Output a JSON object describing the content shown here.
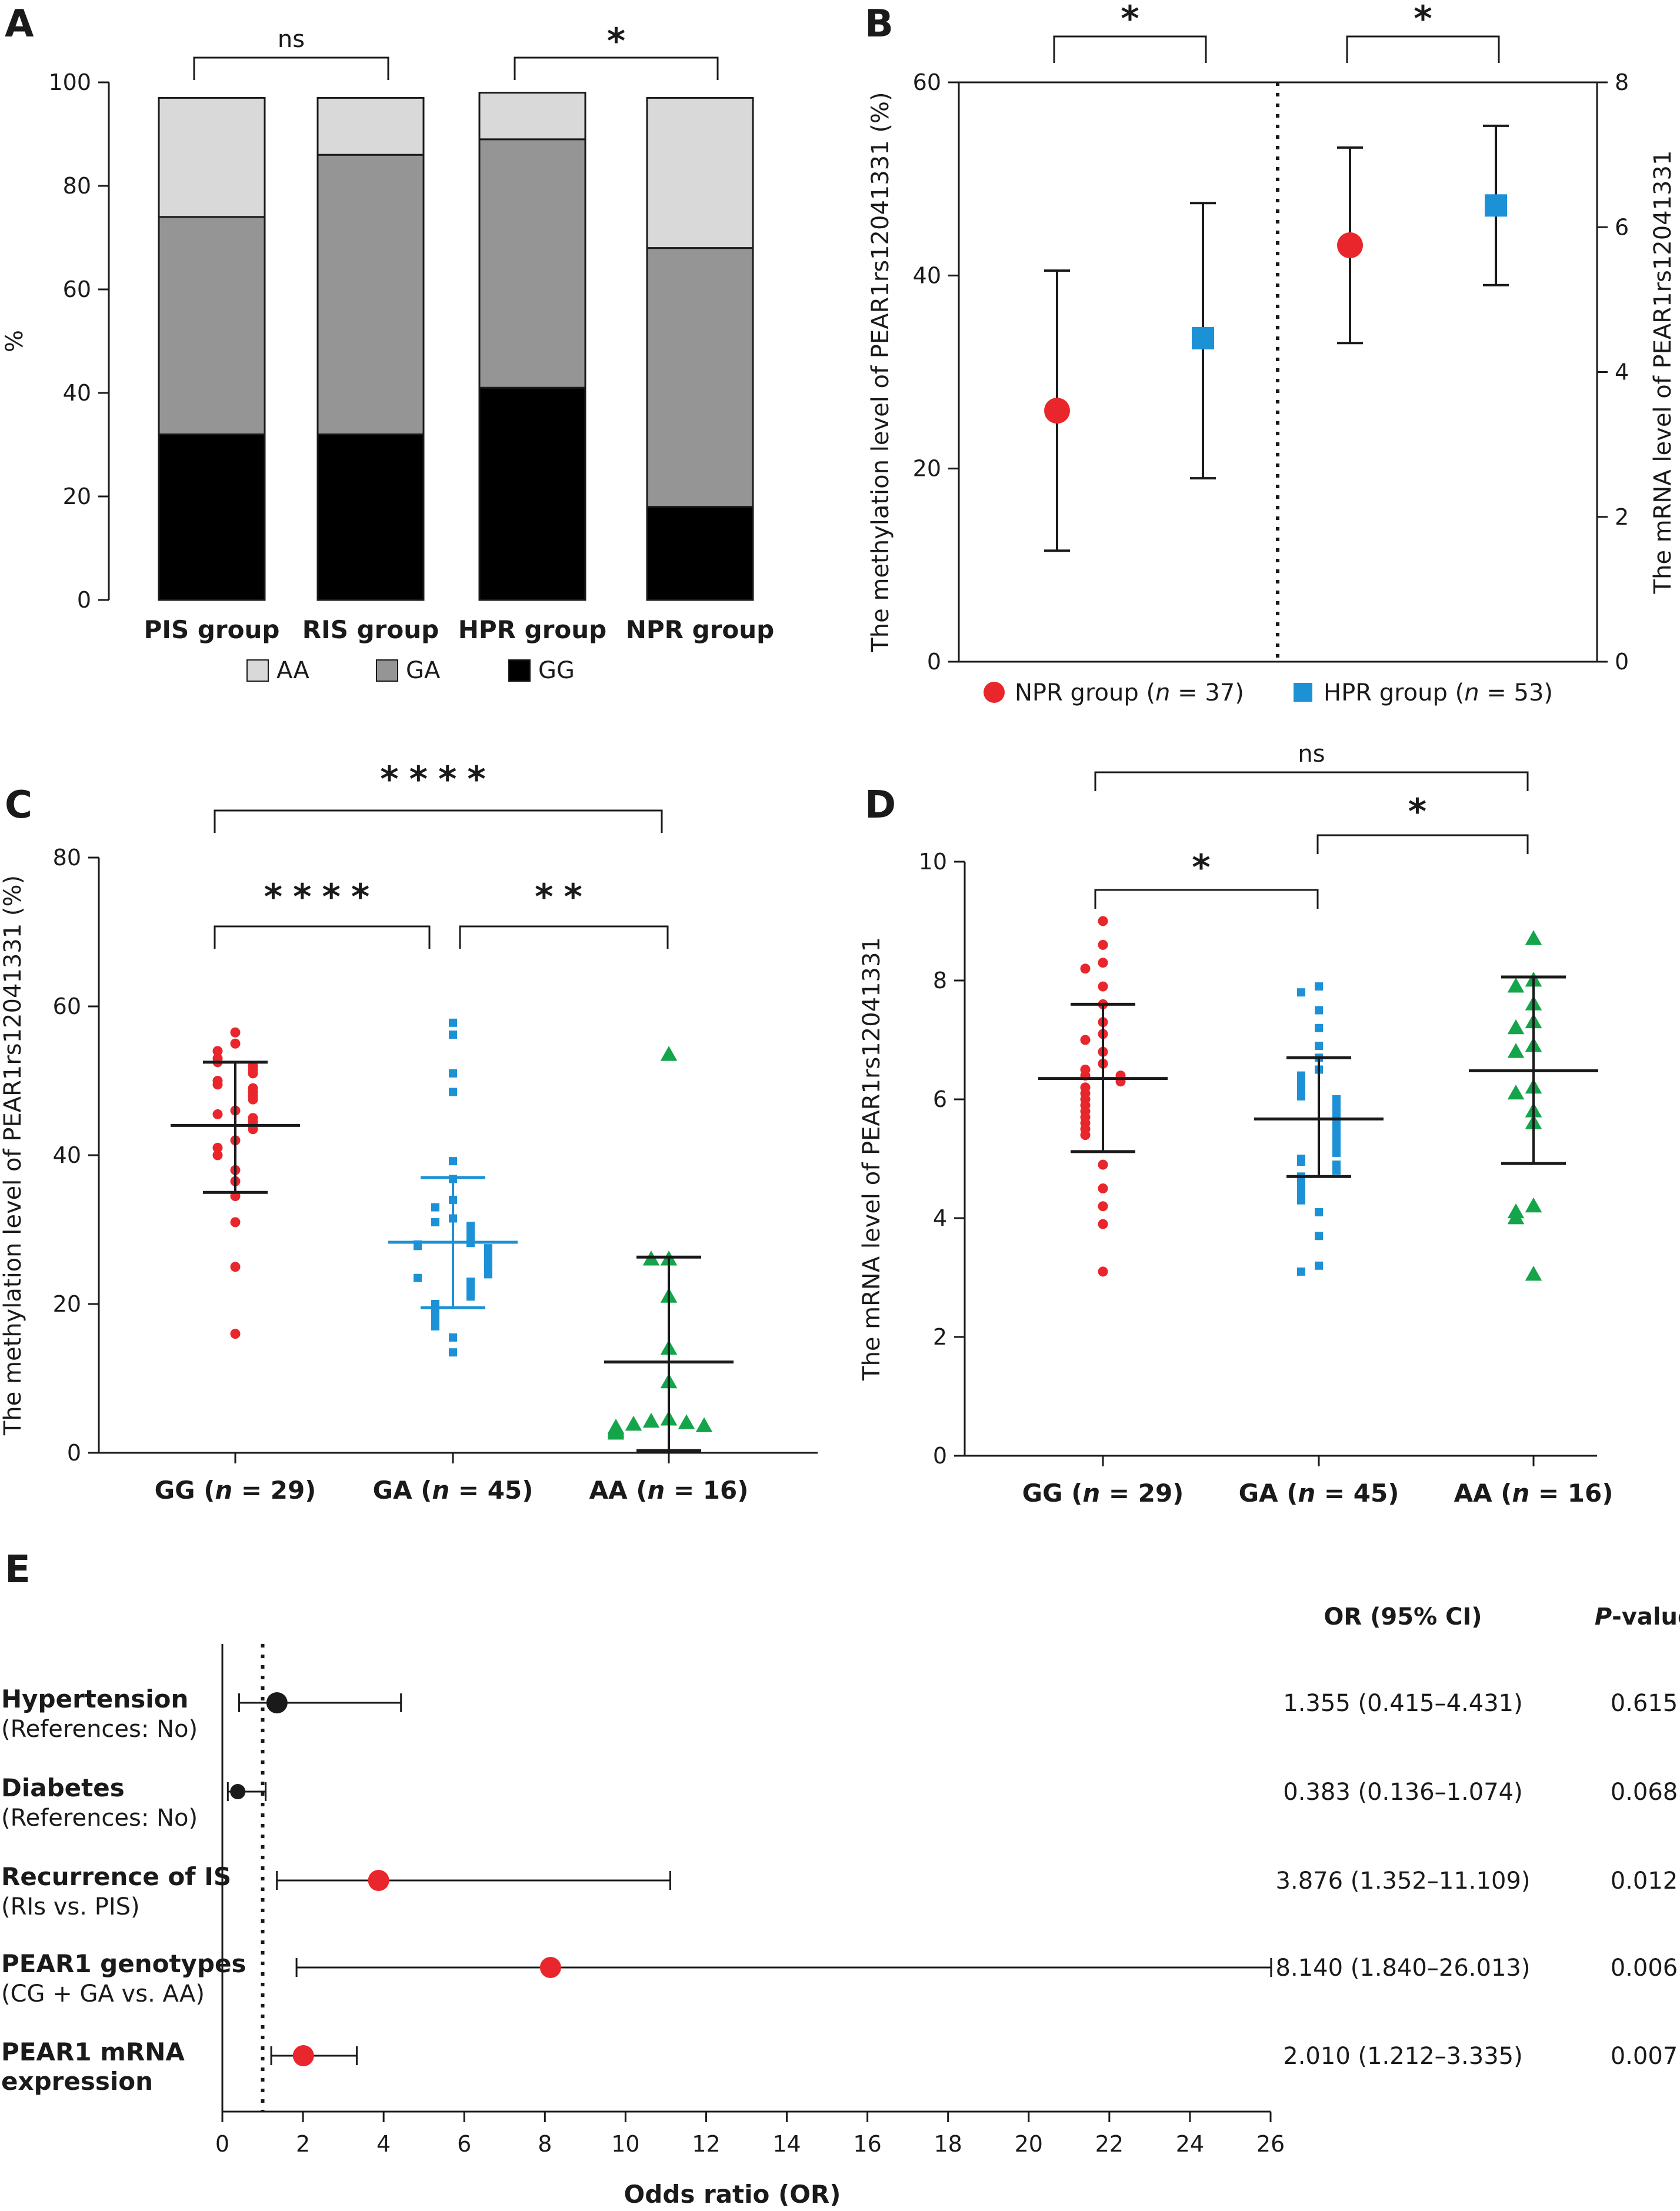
{
  "colors": {
    "red": "#e8262c",
    "blue": "#1c91d6",
    "green": "#14a54a",
    "AA": "#d9d9d9",
    "GA": "#959595",
    "GG": "#000000"
  },
  "panels": {
    "A": {
      "letter": "A"
    },
    "B": {
      "letter": "B"
    },
    "C": {
      "letter": "C"
    },
    "D": {
      "letter": "D"
    },
    "E": {
      "letter": "E"
    }
  },
  "chart_data": [
    {
      "panel": "A",
      "type": "bar",
      "stacked": true,
      "ylabel": "%",
      "ylim": [
        0,
        100
      ],
      "yticks": [
        0,
        20,
        40,
        60,
        80,
        100
      ],
      "categories": [
        "PIS group",
        "RIS group",
        "HPR group",
        "NPR group"
      ],
      "series": [
        {
          "name": "GG",
          "color": "#000000",
          "values": [
            32,
            32,
            41,
            18
          ]
        },
        {
          "name": "GA",
          "color": "#959595",
          "values": [
            42,
            54,
            48,
            50
          ]
        },
        {
          "name": "AA",
          "color": "#d9d9d9",
          "values": [
            23,
            11,
            9,
            29
          ]
        }
      ],
      "legend": [
        "AA",
        "GA",
        "GG"
      ],
      "comparisons": [
        {
          "from": 0,
          "to": 1,
          "label": "ns"
        },
        {
          "from": 2,
          "to": 3,
          "label": "*"
        }
      ]
    },
    {
      "panel": "B",
      "type": "scatter",
      "ylabel": "The methylation level of PEAR1rs12041331 (%)",
      "y2label": "The mRNA level of PEAR1rs12041331",
      "ylim": [
        0,
        60
      ],
      "yticks": [
        0,
        20,
        40,
        60
      ],
      "y2lim": [
        0,
        8
      ],
      "y2ticks": [
        0,
        2,
        4,
        6,
        8
      ],
      "legend": [
        {
          "pre": "NPR group (",
          "n": "n",
          "post": " = 37)",
          "color": "#e8262c",
          "marker": "circle"
        },
        {
          "pre": "HPR group (",
          "n": "n",
          "post": " = 53)",
          "color": "#1c91d6",
          "marker": "square"
        }
      ],
      "points": [
        {
          "axis": "left",
          "group": "NPR group",
          "mean": 26,
          "low": 11.5,
          "high": 40.5,
          "color": "#e8262c",
          "marker": "circle"
        },
        {
          "axis": "left",
          "group": "HPR group",
          "mean": 33.5,
          "low": 19,
          "high": 47.5,
          "color": "#1c91d6",
          "marker": "square"
        },
        {
          "axis": "right",
          "group": "NPR group",
          "mean": 5.75,
          "low": 4.4,
          "high": 7.1,
          "color": "#e8262c",
          "marker": "circle"
        },
        {
          "axis": "right",
          "group": "HPR group",
          "mean": 6.3,
          "low": 5.2,
          "high": 7.4,
          "color": "#1c91d6",
          "marker": "square"
        }
      ],
      "comparisons": [
        {
          "from": 0,
          "to": 1,
          "label": "*"
        },
        {
          "from": 2,
          "to": 3,
          "label": "*"
        }
      ]
    },
    {
      "panel": "C",
      "type": "scatter",
      "ylabel": "The methylation level of PEAR1rs12041331 (%)",
      "ylim": [
        0,
        80
      ],
      "yticks": [
        0,
        20,
        40,
        60,
        80
      ],
      "categories": [
        {
          "pre": "GG (",
          "n": "n",
          "post": " = 29)"
        },
        {
          "pre": "GA (",
          "n": "n",
          "post": " = 45)"
        },
        {
          "pre": "AA (",
          "n": "n",
          "post": " = 16)"
        }
      ],
      "groups": [
        {
          "name": "GG",
          "color": "#e8262c",
          "marker": "circle",
          "mean": 44,
          "sd_low": 35,
          "sd_high": 52.5,
          "summary_color": "#1a1a1a",
          "values": [
            56.5,
            55,
            54,
            53,
            52.5,
            52,
            51.5,
            51,
            50,
            49.5,
            49,
            48.5,
            48,
            47.5,
            46,
            45.5,
            45,
            44.5,
            44,
            43.5,
            42,
            41,
            40,
            38,
            36.5,
            34.5,
            31,
            25,
            16
          ]
        },
        {
          "name": "GA",
          "color": "#1c91d6",
          "marker": "square",
          "mean": 28.3,
          "sd_low": 19.5,
          "sd_high": 37,
          "summary_color": "#1c91d6",
          "values": [
            57.8,
            56.2,
            51,
            48.5,
            39.2,
            36.8,
            34,
            33,
            31.5,
            31,
            30.5,
            30,
            29.5,
            29,
            28.5,
            28.2,
            28,
            27.8,
            27.5,
            27.2,
            27,
            26.8,
            26.5,
            26.2,
            26,
            25.8,
            25.5,
            25.2,
            25,
            24.8,
            24.5,
            24.2,
            24,
            23.5,
            23,
            22.5,
            22,
            21.5,
            21,
            20,
            19,
            18,
            17,
            15.5,
            13.5
          ]
        },
        {
          "name": "AA",
          "color": "#14a54a",
          "marker": "triangle",
          "mean": 12.2,
          "sd_low": 0.3,
          "sd_high": 26.3,
          "summary_color": "#1a1a1a",
          "values": [
            53.5,
            26,
            26,
            21,
            14,
            9.5,
            4.5,
            4.2,
            4,
            3.8,
            3.6,
            3.4,
            3.2,
            3,
            2.8,
            2.6
          ]
        }
      ],
      "comparisons": [
        {
          "from": 0,
          "to": 1,
          "label": "****",
          "level": 0
        },
        {
          "from": 1,
          "to": 2,
          "label": "**",
          "level": 0
        },
        {
          "from": 0,
          "to": 2,
          "label": "****",
          "level": 1
        }
      ]
    },
    {
      "panel": "D",
      "type": "scatter",
      "ylabel": "The mRNA level of PEAR1rs12041331",
      "ylim": [
        0,
        10
      ],
      "yticks": [
        0,
        2,
        4,
        6,
        8,
        10
      ],
      "categories": [
        {
          "pre": "GG (",
          "n": "n",
          "post": " = 29)"
        },
        {
          "pre": "GA (",
          "n": "n",
          "post": " = 45)"
        },
        {
          "pre": "AA (",
          "n": "n",
          "post": " = 16)"
        }
      ],
      "groups": [
        {
          "name": "GG",
          "color": "#e8262c",
          "marker": "circle",
          "mean": 6.35,
          "sd_low": 5.12,
          "sd_high": 7.6,
          "summary_color": "#1a1a1a",
          "values": [
            9,
            8.6,
            8.3,
            8.2,
            7.9,
            7.6,
            7.3,
            7.1,
            7,
            6.8,
            6.6,
            6.5,
            6.4,
            6.4,
            6.3,
            6.2,
            6.1,
            6,
            5.9,
            5.8,
            5.7,
            5.6,
            5.5,
            5.4,
            4.9,
            4.5,
            4.2,
            3.9,
            3.1
          ]
        },
        {
          "name": "GA",
          "color": "#1c91d6",
          "marker": "square",
          "mean": 5.67,
          "sd_low": 4.7,
          "sd_high": 6.7,
          "summary_color": "#1a1a1a",
          "values": [
            7.9,
            7.8,
            7.5,
            7.2,
            6.9,
            6.7,
            6.5,
            6.4,
            6.3,
            6.2,
            6.1,
            6.05,
            6,
            5.95,
            5.9,
            5.85,
            5.8,
            5.75,
            5.7,
            5.65,
            5.6,
            5.55,
            5.5,
            5.45,
            5.4,
            5.35,
            5.3,
            5.25,
            5.2,
            5.15,
            5.1,
            5,
            4.95,
            4.9,
            4.85,
            4.8,
            4.7,
            4.6,
            4.5,
            4.4,
            4.3,
            4.1,
            3.7,
            3.2,
            3.1
          ]
        },
        {
          "name": "AA",
          "color": "#14a54a",
          "marker": "triangle",
          "mean": 6.48,
          "sd_low": 4.92,
          "sd_high": 8.06,
          "summary_color": "#1a1a1a",
          "values": [
            8.7,
            8,
            7.9,
            7.6,
            7.3,
            7.2,
            6.9,
            6.8,
            6.2,
            6.1,
            5.8,
            5.6,
            4.2,
            4.1,
            4,
            3.05
          ]
        }
      ],
      "comparisons": [
        {
          "from": 0,
          "to": 1,
          "label": "*",
          "level": 0
        },
        {
          "from": 1,
          "to": 2,
          "label": "*",
          "level": 1
        },
        {
          "from": 0,
          "to": 2,
          "label": "ns",
          "level": 2
        }
      ]
    },
    {
      "panel": "E",
      "type": "forest",
      "xlabel": "Odds ratio (OR)",
      "xlim": [
        0,
        26
      ],
      "xticks": [
        0,
        2,
        4,
        6,
        8,
        10,
        12,
        14,
        16,
        18,
        20,
        22,
        24,
        26
      ],
      "reference_line": 1,
      "header_or": "OR (95% CI)",
      "header_p_italic": "P",
      "header_p_rest": "-value",
      "rows": [
        {
          "label": "Hypertension",
          "sub": "(References: No)",
          "or": 1.355,
          "low": 0.415,
          "high": 4.431,
          "or_text": "1.355 (0.415–4.431)",
          "p": "0.615",
          "color": "#1a1a1a"
        },
        {
          "label": "Diabetes",
          "sub": "(References: No)",
          "or": 0.383,
          "low": 0.136,
          "high": 1.074,
          "or_text": "0.383 (0.136–1.074)",
          "p": "0.068",
          "color": "#1a1a1a"
        },
        {
          "label": "Recurrence of IS",
          "sub": "(RIs vs. PIS)",
          "or": 3.876,
          "low": 1.352,
          "high": 11.109,
          "or_text": "3.876 (1.352–11.109)",
          "p": "0.012",
          "color": "#e8262c"
        },
        {
          "label": "PEAR1 genotypes",
          "sub": "(CG + GA vs. AA)",
          "or": 8.14,
          "low": 1.84,
          "high": 26.013,
          "or_text": "8.140 (1.840–26.013)",
          "p": "0.006",
          "color": "#e8262c"
        },
        {
          "label": "PEAR1 mRNA",
          "sub": "expression",
          "or": 2.01,
          "low": 1.212,
          "high": 3.335,
          "or_text": "2.010 (1.212–3.335)",
          "p": "0.007",
          "color": "#e8262c",
          "sub_bold": true
        }
      ]
    }
  ]
}
